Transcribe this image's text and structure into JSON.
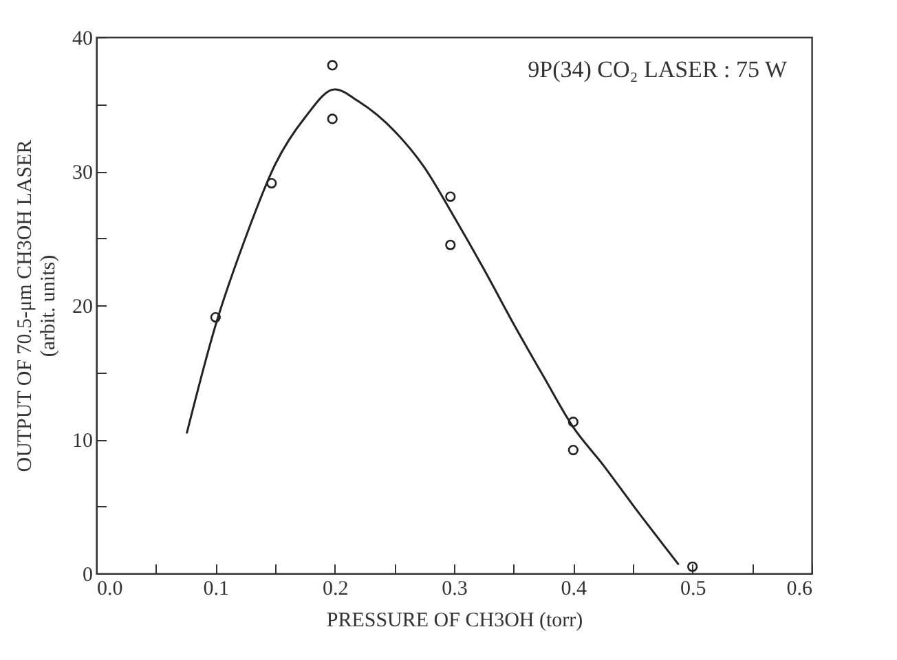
{
  "chart_data": {
    "type": "scatter",
    "xlabel": "PRESSURE OF CH3OH (torr)",
    "ylabel": "OUTPUT OF 70.5-μm CH3OH LASER\n(arbit. units)",
    "annotations": [
      "9P(34)  CO₂ LASER  :  75 W"
    ],
    "series": [
      {
        "marker": "circle",
        "color": "#222222",
        "x": [
          0.1,
          0.147,
          0.198,
          0.198,
          0.297,
          0.297,
          0.4,
          0.4,
          0.5
        ],
        "values": [
          19.1,
          29.1,
          37.9,
          33.9,
          28.1,
          24.5,
          11.3,
          9.2,
          0.5
        ]
      },
      {
        "type": "line",
        "marker": "none",
        "color": "#222222",
        "x": [
          0.076,
          0.1,
          0.125,
          0.15,
          0.175,
          0.2,
          0.22,
          0.25,
          0.275,
          0.3,
          0.325,
          0.35,
          0.375,
          0.4,
          0.425,
          0.45,
          0.488
        ],
        "values": [
          10.5,
          18.5,
          25,
          30.5,
          34,
          36.1,
          35.2,
          33,
          30.3,
          26.6,
          22.7,
          18.6,
          14.7,
          10.9,
          8.1,
          5.1,
          0.7
        ]
      }
    ],
    "line_style": "solid",
    "grid": false,
    "xlim": [
      0,
      0.6
    ],
    "ylim": [
      0,
      40
    ],
    "xticks": [
      {
        "value": 0,
        "label": "0.0"
      },
      {
        "value": 0.05,
        "label": null
      },
      {
        "value": 0.1,
        "label": "0.1"
      },
      {
        "value": 0.15,
        "label": null
      },
      {
        "value": 0.2,
        "label": "0.2"
      },
      {
        "value": 0.25,
        "label": null
      },
      {
        "value": 0.3,
        "label": "0.3"
      },
      {
        "value": 0.35,
        "label": null
      },
      {
        "value": 0.4,
        "label": "0.4"
      },
      {
        "value": 0.45,
        "label": null
      },
      {
        "value": 0.5,
        "label": "0.5"
      },
      {
        "value": 0.55,
        "label": null
      },
      {
        "value": 0.6,
        "label": "0.6"
      }
    ],
    "yticks": [
      0,
      {
        "value": 5,
        "label": null
      },
      10,
      {
        "value": 15,
        "label": null
      },
      20,
      {
        "value": 25,
        "label": null
      },
      30,
      {
        "value": 35,
        "label": null
      },
      40
    ]
  }
}
